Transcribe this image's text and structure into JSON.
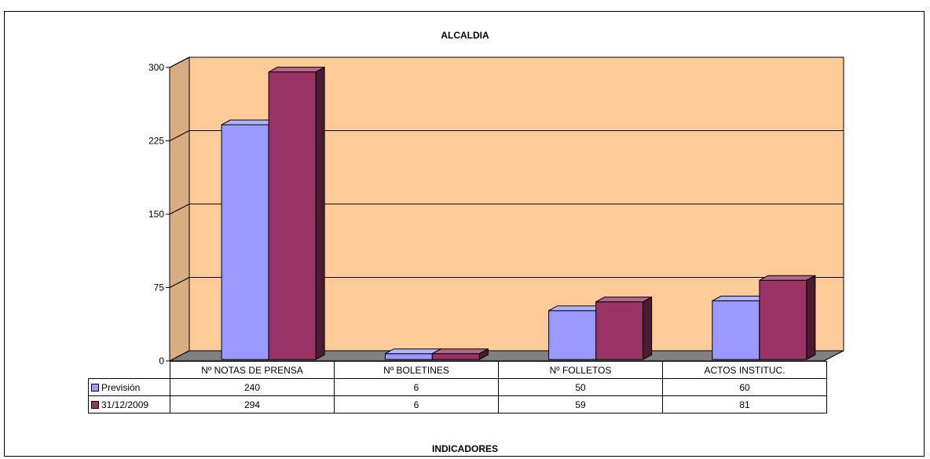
{
  "chart_data": {
    "type": "bar",
    "title": "ALCALDIA",
    "xlabel": "INDICADORES",
    "ylabel": "",
    "ylim": [
      0,
      300
    ],
    "yticks": [
      0,
      75,
      150,
      225,
      300
    ],
    "categories": [
      "Nº NOTAS DE PRENSA",
      "Nº BOLETINES",
      "Nº FOLLETOS",
      "ACTOS INSTITUC."
    ],
    "series": [
      {
        "name": "Previsión",
        "values": [
          240,
          6,
          50,
          60
        ],
        "color": "#9999ff"
      },
      {
        "name": "31/12/2009",
        "values": [
          294,
          6,
          59,
          81
        ],
        "color": "#993366"
      }
    ],
    "grid": true,
    "legend": "data-table",
    "plot_background": "#ffcc99",
    "floor_color": "#808080"
  }
}
